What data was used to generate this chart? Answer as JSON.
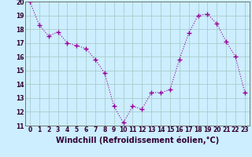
{
  "x": [
    0,
    1,
    2,
    3,
    4,
    5,
    6,
    7,
    8,
    9,
    10,
    11,
    12,
    13,
    14,
    15,
    16,
    17,
    18,
    19,
    20,
    21,
    22,
    23
  ],
  "y": [
    20,
    18.3,
    17.5,
    17.8,
    17.0,
    16.8,
    16.6,
    15.8,
    14.8,
    12.4,
    11.2,
    12.4,
    12.2,
    13.4,
    13.4,
    13.6,
    15.8,
    17.7,
    19.0,
    19.1,
    18.4,
    17.1,
    16.0,
    13.4
  ],
  "line_color": "#990099",
  "marker": "+",
  "marker_size": 4,
  "linewidth": 0.8,
  "linestyle": "dotted",
  "bg_color": "#cceeff",
  "grid_color": "#aacccc",
  "xlabel": "Windchill (Refroidissement éolien,°C)",
  "ylabel": "",
  "ylim": [
    11,
    20
  ],
  "xlim_min": -0.5,
  "xlim_max": 23.5,
  "yticks": [
    11,
    12,
    13,
    14,
    15,
    16,
    17,
    18,
    19,
    20
  ],
  "xticks": [
    0,
    1,
    2,
    3,
    4,
    5,
    6,
    7,
    8,
    9,
    10,
    11,
    12,
    13,
    14,
    15,
    16,
    17,
    18,
    19,
    20,
    21,
    22,
    23
  ],
  "tick_fontsize": 5.5,
  "xlabel_fontsize": 7.0,
  "spine_color": "#666666"
}
